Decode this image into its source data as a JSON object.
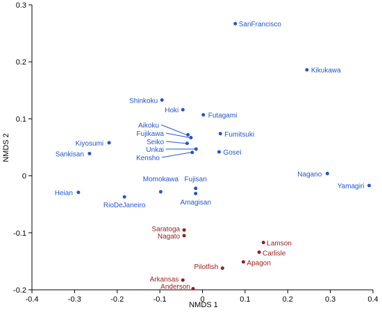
{
  "chart_data": {
    "type": "scatter",
    "xlabel": "NMDS 1",
    "ylabel": "NMDS 2",
    "xlim": [
      -0.4,
      0.4
    ],
    "ylim": [
      -0.2,
      0.3
    ],
    "xticks": [
      "-0.4",
      "-0.3",
      "-0.2",
      "-0.1",
      "0",
      "0.1",
      "0.2",
      "0.3",
      "0.4"
    ],
    "yticks": [
      "-0.2",
      "-0.1",
      "0",
      "0.1",
      "0.2",
      "0.3"
    ],
    "colors": {
      "blue_group": "#2255cc",
      "red_group": "#9b1c1c"
    },
    "points": [
      {
        "label": "SanFrancisco",
        "x": 0.077,
        "y": 0.267,
        "group": "blue_group"
      },
      {
        "label": "Kikukawa",
        "x": 0.245,
        "y": 0.186,
        "group": "blue_group"
      },
      {
        "label": "Shinkoku",
        "x": -0.095,
        "y": 0.133,
        "group": "blue_group"
      },
      {
        "label": "Hoki",
        "x": -0.046,
        "y": 0.116,
        "group": "blue_group"
      },
      {
        "label": "Futagami",
        "x": 0.002,
        "y": 0.107,
        "group": "blue_group"
      },
      {
        "label": "Aikoku",
        "x": -0.034,
        "y": 0.072,
        "group": "blue_group"
      },
      {
        "label": "Fujikawa",
        "x": -0.027,
        "y": 0.067,
        "group": "blue_group"
      },
      {
        "label": "Fumitsuki",
        "x": 0.042,
        "y": 0.074,
        "group": "blue_group"
      },
      {
        "label": "Seiko",
        "x": -0.036,
        "y": 0.057,
        "group": "blue_group"
      },
      {
        "label": "Unkai",
        "x": -0.015,
        "y": 0.047,
        "group": "blue_group"
      },
      {
        "label": "Kensho",
        "x": -0.024,
        "y": 0.041,
        "group": "blue_group"
      },
      {
        "label": "Gosei",
        "x": 0.039,
        "y": 0.042,
        "group": "blue_group"
      },
      {
        "label": "Kiyosumi",
        "x": -0.219,
        "y": 0.058,
        "group": "blue_group"
      },
      {
        "label": "Sankisan",
        "x": -0.265,
        "y": 0.039,
        "group": "blue_group"
      },
      {
        "label": "Nagano",
        "x": 0.293,
        "y": 0.004,
        "group": "blue_group"
      },
      {
        "label": "Yamagiri",
        "x": 0.391,
        "y": -0.017,
        "group": "blue_group"
      },
      {
        "label": "Fujisan",
        "x": -0.016,
        "y": -0.022,
        "group": "blue_group"
      },
      {
        "label": "Amagisan",
        "x": -0.016,
        "y": -0.031,
        "group": "blue_group"
      },
      {
        "label": "Momokawa",
        "x": -0.098,
        "y": -0.028,
        "group": "blue_group"
      },
      {
        "label": "Heian",
        "x": -0.291,
        "y": -0.029,
        "group": "blue_group"
      },
      {
        "label": "RioDeJaneiro",
        "x": -0.183,
        "y": -0.037,
        "group": "blue_group"
      },
      {
        "label": "Saratoga",
        "x": -0.043,
        "y": -0.095,
        "group": "red_group"
      },
      {
        "label": "Nagato",
        "x": -0.043,
        "y": -0.105,
        "group": "red_group"
      },
      {
        "label": "Lamson",
        "x": 0.143,
        "y": -0.117,
        "group": "red_group"
      },
      {
        "label": "Carlisle",
        "x": 0.133,
        "y": -0.134,
        "group": "red_group"
      },
      {
        "label": "Apagon",
        "x": 0.096,
        "y": -0.151,
        "group": "red_group"
      },
      {
        "label": "Pilotfish",
        "x": 0.047,
        "y": -0.162,
        "group": "red_group"
      },
      {
        "label": "Arkansas",
        "x": -0.046,
        "y": -0.183,
        "group": "red_group"
      },
      {
        "label": "Anderson",
        "x": -0.022,
        "y": -0.198,
        "group": "red_group"
      }
    ]
  }
}
